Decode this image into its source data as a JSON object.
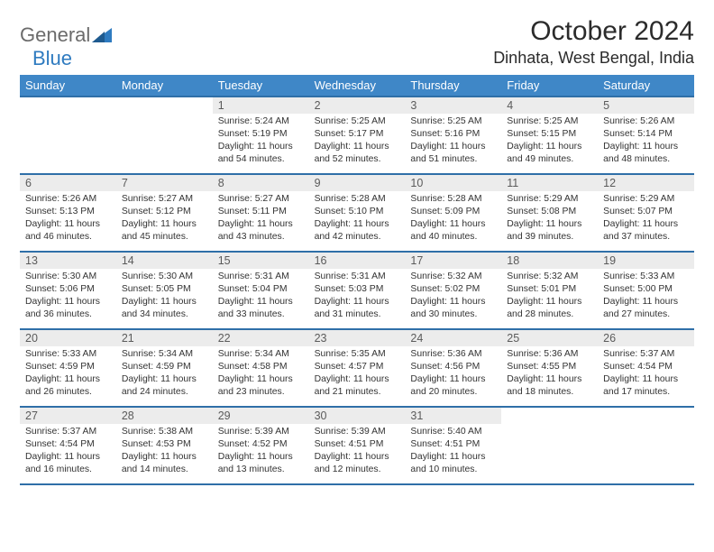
{
  "logo": {
    "word1": "General",
    "word2": "Blue"
  },
  "title": "October 2024",
  "location": "Dinhata, West Bengal, India",
  "colors": {
    "header_bg": "#3f87c7",
    "header_text": "#ffffff",
    "border": "#2f6fa8",
    "daynum_bg": "#ececec",
    "daynum_text": "#5b5b5b",
    "body_text": "#333333",
    "title_text": "#2b2b2b",
    "logo_gray": "#6b6b6b",
    "logo_blue": "#2f7bc0"
  },
  "weekdays": [
    "Sunday",
    "Monday",
    "Tuesday",
    "Wednesday",
    "Thursday",
    "Friday",
    "Saturday"
  ],
  "weeks": [
    [
      {
        "empty": true
      },
      {
        "empty": true
      },
      {
        "n": "1",
        "sr": "5:24 AM",
        "ss": "5:19 PM",
        "dl": "11 hours and 54 minutes."
      },
      {
        "n": "2",
        "sr": "5:25 AM",
        "ss": "5:17 PM",
        "dl": "11 hours and 52 minutes."
      },
      {
        "n": "3",
        "sr": "5:25 AM",
        "ss": "5:16 PM",
        "dl": "11 hours and 51 minutes."
      },
      {
        "n": "4",
        "sr": "5:25 AM",
        "ss": "5:15 PM",
        "dl": "11 hours and 49 minutes."
      },
      {
        "n": "5",
        "sr": "5:26 AM",
        "ss": "5:14 PM",
        "dl": "11 hours and 48 minutes."
      }
    ],
    [
      {
        "n": "6",
        "sr": "5:26 AM",
        "ss": "5:13 PM",
        "dl": "11 hours and 46 minutes."
      },
      {
        "n": "7",
        "sr": "5:27 AM",
        "ss": "5:12 PM",
        "dl": "11 hours and 45 minutes."
      },
      {
        "n": "8",
        "sr": "5:27 AM",
        "ss": "5:11 PM",
        "dl": "11 hours and 43 minutes."
      },
      {
        "n": "9",
        "sr": "5:28 AM",
        "ss": "5:10 PM",
        "dl": "11 hours and 42 minutes."
      },
      {
        "n": "10",
        "sr": "5:28 AM",
        "ss": "5:09 PM",
        "dl": "11 hours and 40 minutes."
      },
      {
        "n": "11",
        "sr": "5:29 AM",
        "ss": "5:08 PM",
        "dl": "11 hours and 39 minutes."
      },
      {
        "n": "12",
        "sr": "5:29 AM",
        "ss": "5:07 PM",
        "dl": "11 hours and 37 minutes."
      }
    ],
    [
      {
        "n": "13",
        "sr": "5:30 AM",
        "ss": "5:06 PM",
        "dl": "11 hours and 36 minutes."
      },
      {
        "n": "14",
        "sr": "5:30 AM",
        "ss": "5:05 PM",
        "dl": "11 hours and 34 minutes."
      },
      {
        "n": "15",
        "sr": "5:31 AM",
        "ss": "5:04 PM",
        "dl": "11 hours and 33 minutes."
      },
      {
        "n": "16",
        "sr": "5:31 AM",
        "ss": "5:03 PM",
        "dl": "11 hours and 31 minutes."
      },
      {
        "n": "17",
        "sr": "5:32 AM",
        "ss": "5:02 PM",
        "dl": "11 hours and 30 minutes."
      },
      {
        "n": "18",
        "sr": "5:32 AM",
        "ss": "5:01 PM",
        "dl": "11 hours and 28 minutes."
      },
      {
        "n": "19",
        "sr": "5:33 AM",
        "ss": "5:00 PM",
        "dl": "11 hours and 27 minutes."
      }
    ],
    [
      {
        "n": "20",
        "sr": "5:33 AM",
        "ss": "4:59 PM",
        "dl": "11 hours and 26 minutes."
      },
      {
        "n": "21",
        "sr": "5:34 AM",
        "ss": "4:59 PM",
        "dl": "11 hours and 24 minutes."
      },
      {
        "n": "22",
        "sr": "5:34 AM",
        "ss": "4:58 PM",
        "dl": "11 hours and 23 minutes."
      },
      {
        "n": "23",
        "sr": "5:35 AM",
        "ss": "4:57 PM",
        "dl": "11 hours and 21 minutes."
      },
      {
        "n": "24",
        "sr": "5:36 AM",
        "ss": "4:56 PM",
        "dl": "11 hours and 20 minutes."
      },
      {
        "n": "25",
        "sr": "5:36 AM",
        "ss": "4:55 PM",
        "dl": "11 hours and 18 minutes."
      },
      {
        "n": "26",
        "sr": "5:37 AM",
        "ss": "4:54 PM",
        "dl": "11 hours and 17 minutes."
      }
    ],
    [
      {
        "n": "27",
        "sr": "5:37 AM",
        "ss": "4:54 PM",
        "dl": "11 hours and 16 minutes."
      },
      {
        "n": "28",
        "sr": "5:38 AM",
        "ss": "4:53 PM",
        "dl": "11 hours and 14 minutes."
      },
      {
        "n": "29",
        "sr": "5:39 AM",
        "ss": "4:52 PM",
        "dl": "11 hours and 13 minutes."
      },
      {
        "n": "30",
        "sr": "5:39 AM",
        "ss": "4:51 PM",
        "dl": "11 hours and 12 minutes."
      },
      {
        "n": "31",
        "sr": "5:40 AM",
        "ss": "4:51 PM",
        "dl": "11 hours and 10 minutes."
      },
      {
        "empty": true
      },
      {
        "empty": true
      }
    ]
  ],
  "labels": {
    "sunrise": "Sunrise:",
    "sunset": "Sunset:",
    "daylight": "Daylight:"
  }
}
